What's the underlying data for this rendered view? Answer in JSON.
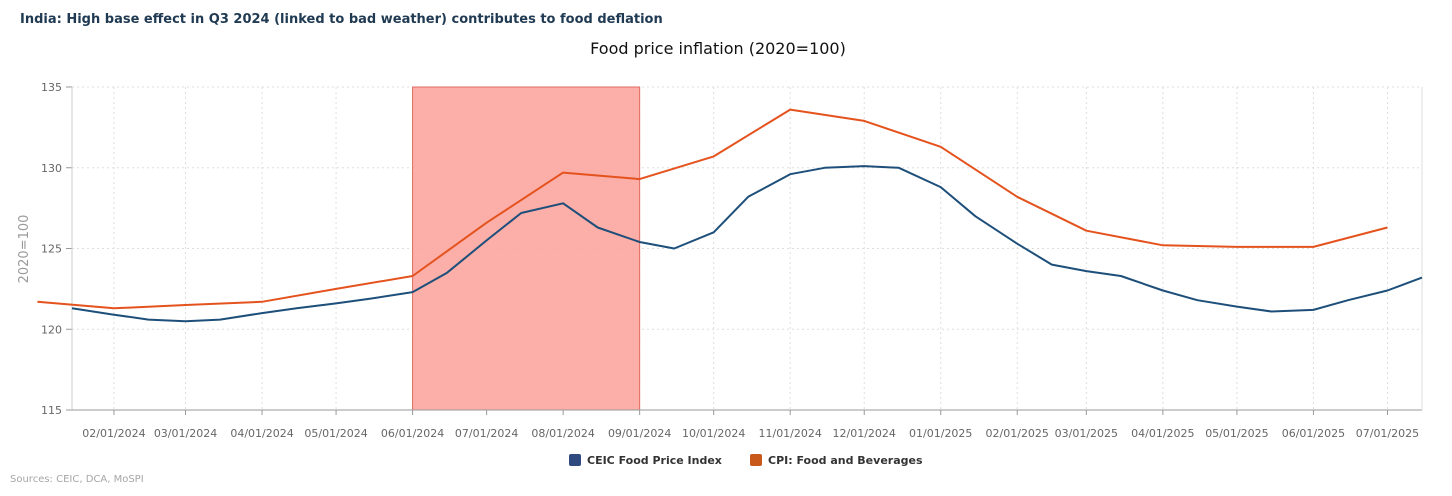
{
  "heading": "India: High base effect in Q3 2024 (linked to bad weather) contributes to food deflation",
  "source": "Sources: CEIC, DCA, MoSPI",
  "chart_data": {
    "type": "line",
    "title": "Food price inflation (2020=100)",
    "ylabel": "2020=100",
    "xlabel": "",
    "ylim": [
      115,
      135
    ],
    "yticks": [
      115,
      120,
      125,
      130,
      135
    ],
    "xlim": [
      "2024-01-15",
      "2025-07-15"
    ],
    "xticks": [
      "02/01/2024",
      "03/01/2024",
      "04/01/2024",
      "05/01/2024",
      "06/01/2024",
      "07/01/2024",
      "08/01/2024",
      "09/01/2024",
      "10/01/2024",
      "11/01/2024",
      "12/01/2024",
      "01/01/2025",
      "02/01/2025",
      "03/01/2025",
      "04/01/2025",
      "05/01/2025",
      "06/01/2025",
      "07/01/2025"
    ],
    "grid": true,
    "legend_position": "bottom",
    "highlight": {
      "from": "2024-06-01",
      "to": "2024-09-01",
      "color": "#fca59e"
    },
    "series": [
      {
        "name": "CEIC Food Price Index",
        "color": "#1d4f7a",
        "x": [
          "2024-01-15",
          "2024-02-01",
          "2024-02-15",
          "2024-03-01",
          "2024-03-15",
          "2024-04-01",
          "2024-04-15",
          "2024-05-01",
          "2024-05-15",
          "2024-06-01",
          "2024-06-15",
          "2024-07-01",
          "2024-07-15",
          "2024-08-01",
          "2024-08-15",
          "2024-09-01",
          "2024-09-15",
          "2024-10-01",
          "2024-10-15",
          "2024-11-01",
          "2024-11-15",
          "2024-12-01",
          "2024-12-15",
          "2025-01-01",
          "2025-01-15",
          "2025-02-01",
          "2025-02-15",
          "2025-03-01",
          "2025-03-15",
          "2025-04-01",
          "2025-04-15",
          "2025-05-01",
          "2025-05-15",
          "2025-06-01",
          "2025-06-15",
          "2025-07-01",
          "2025-07-15"
        ],
        "values": [
          121.3,
          120.9,
          120.6,
          120.5,
          120.6,
          121.0,
          121.3,
          121.6,
          121.9,
          122.3,
          123.5,
          125.5,
          127.2,
          127.8,
          126.3,
          125.4,
          125.0,
          126.0,
          128.2,
          129.6,
          130.0,
          130.1,
          130.0,
          128.8,
          127.0,
          125.3,
          124.0,
          123.6,
          123.3,
          122.4,
          121.8,
          121.4,
          121.1,
          121.2,
          121.8,
          122.4,
          123.2
        ]
      },
      {
        "name": "CPI: Food and Beverages",
        "color": "#e4531e",
        "x": [
          "2024-01-01",
          "2024-02-01",
          "2024-03-01",
          "2024-04-01",
          "2024-05-01",
          "2024-06-01",
          "2024-07-01",
          "2024-08-01",
          "2024-09-01",
          "2024-10-01",
          "2024-11-01",
          "2024-12-01",
          "2025-01-01",
          "2025-02-01",
          "2025-03-01",
          "2025-04-01",
          "2025-05-01",
          "2025-06-01",
          "2025-07-01"
        ],
        "values": [
          121.7,
          121.3,
          121.5,
          121.7,
          122.5,
          123.3,
          126.6,
          129.7,
          129.3,
          130.7,
          133.6,
          132.9,
          131.3,
          128.2,
          126.1,
          125.2,
          125.1,
          125.1,
          126.3
        ]
      }
    ]
  }
}
